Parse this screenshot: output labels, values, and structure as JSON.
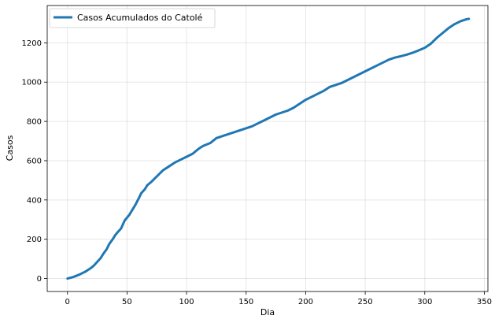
{
  "chart_data": {
    "type": "line",
    "title": "",
    "xlabel": "Dia",
    "ylabel": "Casos",
    "xlim": [
      -17,
      353
    ],
    "ylim": [
      -66,
      1390
    ],
    "xticks": [
      0,
      50,
      100,
      150,
      200,
      250,
      300,
      350
    ],
    "yticks": [
      0,
      200,
      400,
      600,
      800,
      1000,
      1200
    ],
    "grid": true,
    "legend_position": "top-left",
    "series": [
      {
        "name": "Casos Acumulados do Catolé",
        "color": "#1f77b4",
        "x": [
          0,
          5,
          10,
          15,
          20,
          22,
          25,
          28,
          30,
          33,
          35,
          38,
          40,
          42,
          45,
          48,
          50,
          52,
          55,
          57,
          60,
          62,
          65,
          67,
          70,
          75,
          80,
          85,
          90,
          95,
          100,
          105,
          110,
          113,
          115,
          120,
          125,
          130,
          135,
          140,
          145,
          150,
          155,
          160,
          165,
          170,
          175,
          180,
          185,
          190,
          195,
          200,
          205,
          210,
          215,
          220,
          225,
          230,
          235,
          240,
          245,
          250,
          255,
          260,
          265,
          270,
          275,
          280,
          285,
          290,
          295,
          300,
          305,
          310,
          315,
          320,
          325,
          330,
          335,
          337
        ],
        "y": [
          0,
          8,
          20,
          35,
          55,
          65,
          85,
          105,
          125,
          150,
          175,
          200,
          220,
          235,
          255,
          295,
          310,
          325,
          355,
          375,
          410,
          435,
          455,
          475,
          490,
          520,
          550,
          570,
          590,
          605,
          620,
          635,
          660,
          672,
          678,
          690,
          715,
          725,
          735,
          745,
          755,
          765,
          775,
          790,
          805,
          820,
          835,
          845,
          855,
          870,
          890,
          910,
          925,
          940,
          955,
          975,
          985,
          995,
          1010,
          1025,
          1040,
          1055,
          1070,
          1085,
          1100,
          1115,
          1125,
          1132,
          1140,
          1150,
          1162,
          1175,
          1195,
          1225,
          1250,
          1275,
          1295,
          1310,
          1320,
          1322
        ]
      }
    ]
  }
}
